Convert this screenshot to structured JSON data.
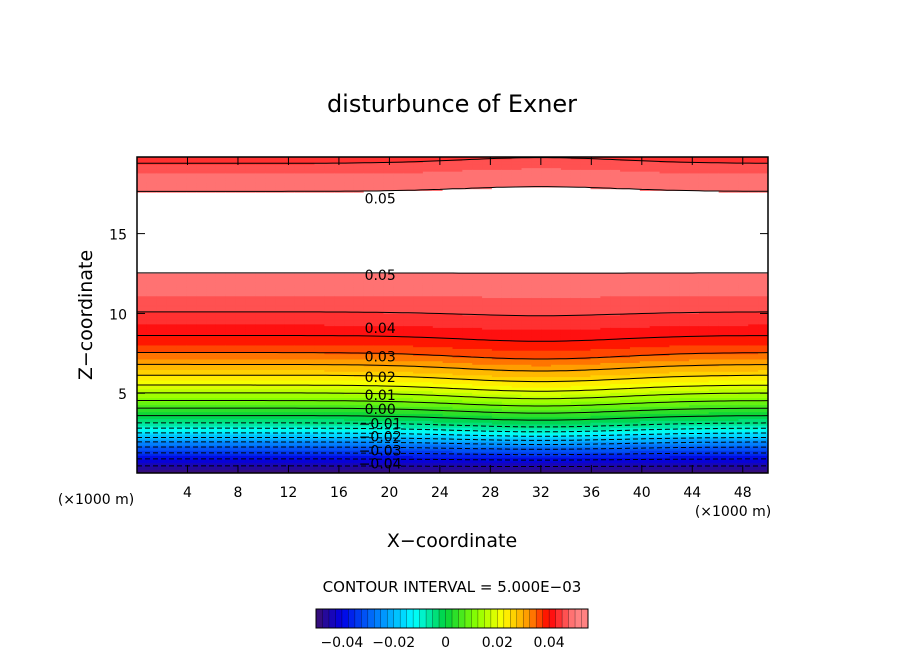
{
  "chart_data": {
    "type": "contour",
    "title": "disturbunce of Exner",
    "xlabel": "X−coordinate",
    "ylabel": "Z−coordinate",
    "x_unit": "(×1000 m)",
    "y_unit": "(×1000 m)",
    "xlim": [
      0,
      50
    ],
    "ylim": [
      0,
      19.8
    ],
    "x_ticks": [
      4,
      8,
      12,
      16,
      20,
      24,
      28,
      32,
      36,
      40,
      44,
      48
    ],
    "y_ticks": [
      5,
      10,
      15
    ],
    "contour_interval_label": "CONTOUR INTERVAL = 5.000E−03",
    "contour_interval": 0.005,
    "value_range": [
      -0.05,
      0.055
    ],
    "value_profile": {
      "z": [
        0,
        1,
        2,
        3,
        3.5,
        4,
        5,
        6,
        7,
        8,
        9,
        10,
        11,
        12,
        12.6,
        13,
        16,
        17.3,
        18,
        19,
        19.8
      ],
      "value": [
        -0.05,
        -0.04,
        -0.028,
        -0.012,
        -0.005,
        0.0,
        0.01,
        0.02,
        0.028,
        0.035,
        0.04,
        0.044,
        0.047,
        0.049,
        0.05,
        0.056,
        0.056,
        0.05,
        0.049,
        0.045,
        0.04
      ]
    },
    "hill_center_x": 32,
    "contour_labels": [
      {
        "text": "0.05",
        "x": 18,
        "z": 17.2
      },
      {
        "text": "0.05",
        "x": 18,
        "z": 12.4
      },
      {
        "text": "0.04",
        "x": 18,
        "z": 9.1
      },
      {
        "text": "0.03",
        "x": 18,
        "z": 7.3
      },
      {
        "text": "0.02",
        "x": 18,
        "z": 6.0
      },
      {
        "text": "0.01",
        "x": 18,
        "z": 4.9
      },
      {
        "text": "0.00",
        "x": 18,
        "z": 4.0
      },
      {
        "text": "−0.01",
        "x": 18,
        "z": 3.1
      },
      {
        "text": "−0.02",
        "x": 18,
        "z": 2.3
      },
      {
        "text": "−0.03",
        "x": 18,
        "z": 1.4
      },
      {
        "text": "−0.04",
        "x": 18,
        "z": 0.6
      }
    ],
    "colorbar": {
      "min": -0.05,
      "max": 0.055,
      "ticks": [
        -0.04,
        -0.02,
        0,
        0.02,
        0.04
      ],
      "tick_labels": [
        "−0.04",
        "−0.02",
        "0",
        "0.02",
        "0.04"
      ]
    },
    "colors": {
      "min": "#3a1a7a",
      "low": "#0000ff",
      "mid_low": "#00ffff",
      "zero": "#00cc33",
      "mid_high": "#ffff00",
      "high": "#ff0000",
      "max": "#ff8080",
      "saturated": "#ffffff"
    }
  }
}
